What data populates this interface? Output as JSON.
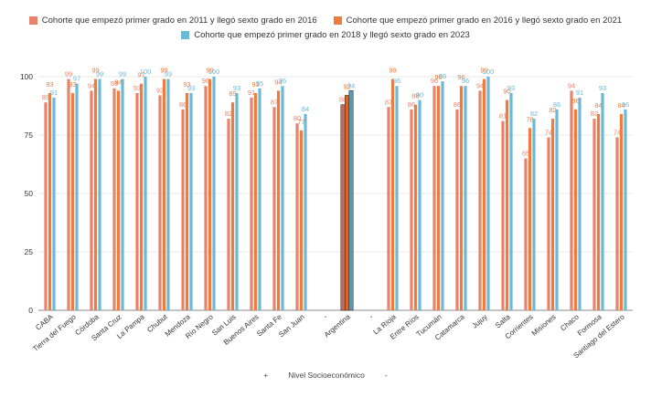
{
  "chart_data": {
    "type": "bar",
    "ylim": [
      0,
      100
    ],
    "yticks": [
      0,
      25,
      50,
      75,
      100
    ],
    "categories": [
      "CABA",
      "Tierra del Fuego",
      "Córdoba",
      "Santa Cruz",
      "La Pampa",
      "Chubut",
      "Mendoza",
      "Río Negro",
      "San Luis",
      "Buenos Aires",
      "Santa Fe",
      "San Juan",
      "-",
      "Argentina",
      "-",
      "La Rioja",
      "Entre Ríos",
      "Tucumán",
      "Catamarca",
      "Jujuy",
      "Salta",
      "Corrientes",
      "Misiones",
      "Chaco",
      "Formosa",
      "Santiago del Estero"
    ],
    "series": [
      {
        "name": "Cohorte que empezó primer grado en 2011 y llegó sexto grado en 2016",
        "color": "#e8836b",
        "values": [
          89,
          99,
          94,
          95,
          93,
          92,
          86,
          96,
          82,
          91,
          87,
          80,
          null,
          88,
          null,
          87,
          86,
          96,
          86,
          94,
          81,
          65,
          74,
          94,
          82,
          74
        ]
      },
      {
        "name": "Cohorte que empezó primer grado en 2016 y llegó sexto grado en 2021",
        "color": "#f07b3f",
        "values": [
          93,
          93,
          99,
          94,
          97,
          99,
          93,
          99,
          89,
          93,
          94,
          77,
          null,
          92,
          null,
          99,
          88,
          96,
          96,
          99,
          90,
          78,
          82,
          86,
          84,
          84
        ]
      },
      {
        "name": "Cohorte que empezó primer grado en 2018 y llegó sexto grado en 2023",
        "color": "#6cb9d6",
        "values": [
          91,
          97,
          99,
          99,
          100,
          99,
          93,
          100,
          93,
          95,
          96,
          84,
          null,
          94,
          null,
          96,
          90,
          98,
          96,
          100,
          93,
          82,
          86,
          91,
          93,
          86
        ]
      }
    ],
    "highlight": {
      "category": "Argentina",
      "colors": [
        "#c96a55",
        "#d4652b",
        "#5a9ab3"
      ]
    }
  },
  "legend": {
    "items": [
      "Cohorte que empezó primer grado en 2011 y llegó sexto grado en 2016",
      "Cohorte que empezó primer grado en 2016 y llegó sexto grado en 2021",
      "Cohorte que empezó primer grado en 2018 y llegó sexto grado en 2023"
    ],
    "colors": [
      "#e8836b",
      "#f07b3f",
      "#6cb9d6"
    ]
  },
  "footer": {
    "plus": "+",
    "label": "Nivel Socioeconómico",
    "minus": "-"
  }
}
